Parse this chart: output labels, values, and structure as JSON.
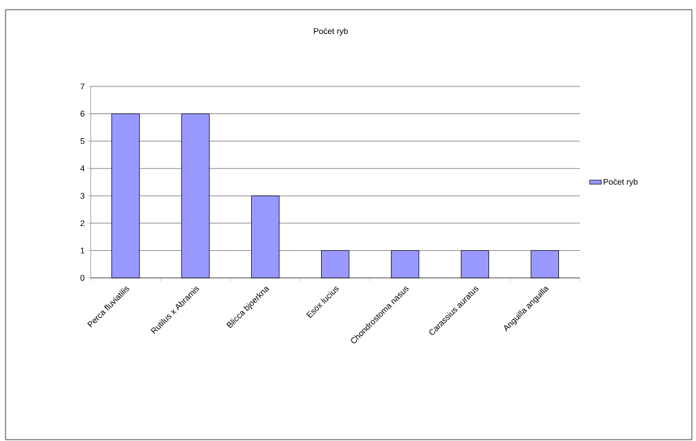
{
  "chart_data": {
    "type": "bar",
    "title": "Počet ryb",
    "categories": [
      "Perca fluviatilis",
      "Rutilus x Abramis",
      "Blicca bjoerkna",
      "Esox lucius",
      "Chondrostoma nasus",
      "Carassius auratus",
      "Anguilla anguilla"
    ],
    "series": [
      {
        "name": "Počet ryb",
        "color": "#9999ff",
        "values": [
          6,
          6,
          3,
          1,
          1,
          1,
          1
        ]
      }
    ],
    "ylim": [
      0,
      7
    ],
    "yticks": [
      0,
      1,
      2,
      3,
      4,
      5,
      6,
      7
    ],
    "grid": "y",
    "legend": "right"
  }
}
